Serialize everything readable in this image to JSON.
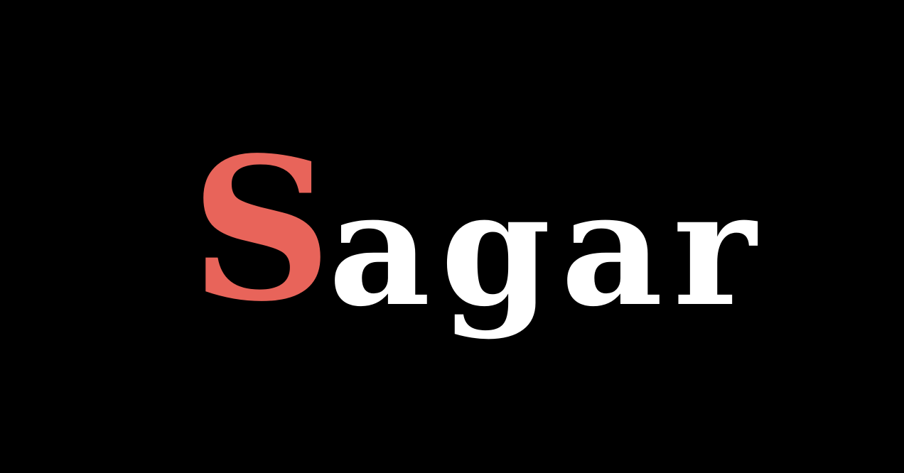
{
  "logo": {
    "initial": "S",
    "rest": "agar",
    "initial_color": "#e8645a",
    "rest_color": "#ffffff",
    "background_color": "#000000"
  }
}
